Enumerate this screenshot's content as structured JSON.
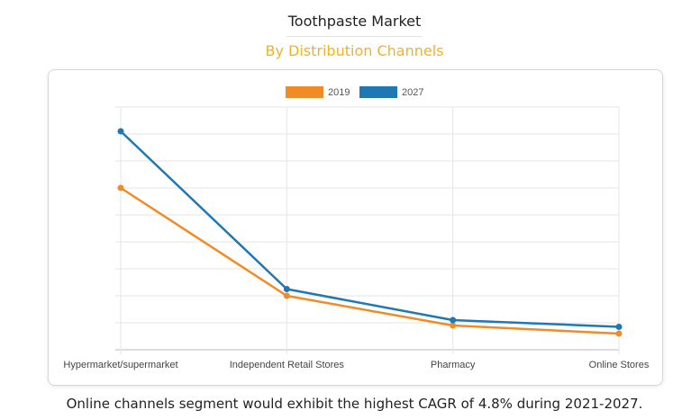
{
  "header": {
    "title": "Toothpaste Market",
    "subtitle": "By Distribution Channels"
  },
  "footer": {
    "caption": "Online channels segment would exhibit the highest CAGR of 4.8% during 2021-2027."
  },
  "chart_data": {
    "type": "line",
    "categories": [
      "Hypermarket/supermarket",
      "Independent Retail Stores",
      "Pharmacy",
      "Online Stores"
    ],
    "series": [
      {
        "name": "2019",
        "color": "#f28a25",
        "values": [
          6.0,
          2.0,
          0.9,
          0.6
        ]
      },
      {
        "name": "2027",
        "color": "#1f77b4",
        "values": [
          8.1,
          2.25,
          1.1,
          0.85
        ]
      }
    ],
    "ylim": [
      0,
      9
    ],
    "grid": true,
    "legend_position": "top-center",
    "y_tick_labels_visible": false
  }
}
